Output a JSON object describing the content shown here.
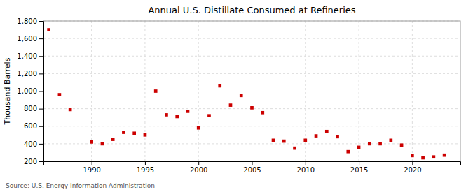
{
  "chart_data": {
    "type": "scatter",
    "title": "Annual U.S. Distillate Consumed at Refineries",
    "ylabel": "Thousand Barrels",
    "source": "Source: U.S. Energy Information Administration",
    "color": "#cc0000",
    "marker": "square",
    "grid": true,
    "xlim": [
      1985.5,
      2024.5
    ],
    "xticks": [
      1990,
      1995,
      2000,
      2005,
      2010,
      2015,
      2020
    ],
    "ylim": [
      200,
      1800
    ],
    "yticks": [
      200,
      400,
      600,
      800,
      {
        "value": 1000,
        "label": "1,000"
      },
      {
        "value": 1200,
        "label": "1,200"
      },
      {
        "value": 1400,
        "label": "1,400"
      },
      {
        "value": 1600,
        "label": "1,600"
      },
      {
        "value": 1800,
        "label": "1,800"
      }
    ],
    "x": [
      1986,
      1987,
      1988,
      1990,
      1991,
      1992,
      1993,
      1994,
      1995,
      1996,
      1997,
      1998,
      1999,
      2000,
      2001,
      2002,
      2003,
      2004,
      2005,
      2006,
      2007,
      2008,
      2009,
      2010,
      2011,
      2012,
      2013,
      2014,
      2015,
      2016,
      2017,
      2018,
      2019,
      2020,
      2021,
      2022,
      2023
    ],
    "values": [
      1700,
      960,
      790,
      420,
      400,
      450,
      530,
      520,
      500,
      1000,
      730,
      710,
      770,
      580,
      720,
      1060,
      840,
      950,
      810,
      755,
      440,
      430,
      350,
      440,
      490,
      540,
      480,
      310,
      360,
      400,
      400,
      440,
      385,
      265,
      240,
      250,
      270
    ]
  }
}
